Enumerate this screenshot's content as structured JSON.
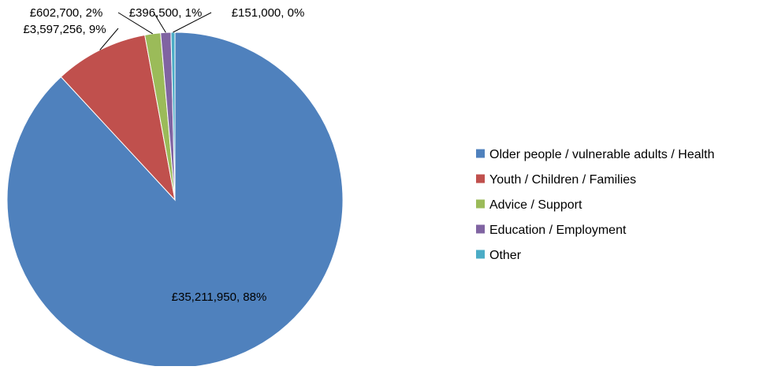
{
  "chart_data": {
    "type": "pie",
    "title": "",
    "categories": [
      "Older people / vulnerable adults / Health",
      "Youth / Children / Families",
      "Advice / Support",
      "Education / Employment",
      "Other"
    ],
    "values": [
      35211950,
      3597256,
      602700,
      396500,
      151000
    ],
    "data_labels": [
      "£35,211,950, 88%",
      "£3,597,256, 9%",
      "£602,700, 2%",
      "£396,500, 1%",
      "£151,000, 0%"
    ],
    "colors": [
      "#4F81BD",
      "#C0504D",
      "#9BBB59",
      "#8064A2",
      "#4BACC6"
    ],
    "start_angle_deg": 0,
    "direction": "clockwise",
    "legend_position": "right"
  }
}
